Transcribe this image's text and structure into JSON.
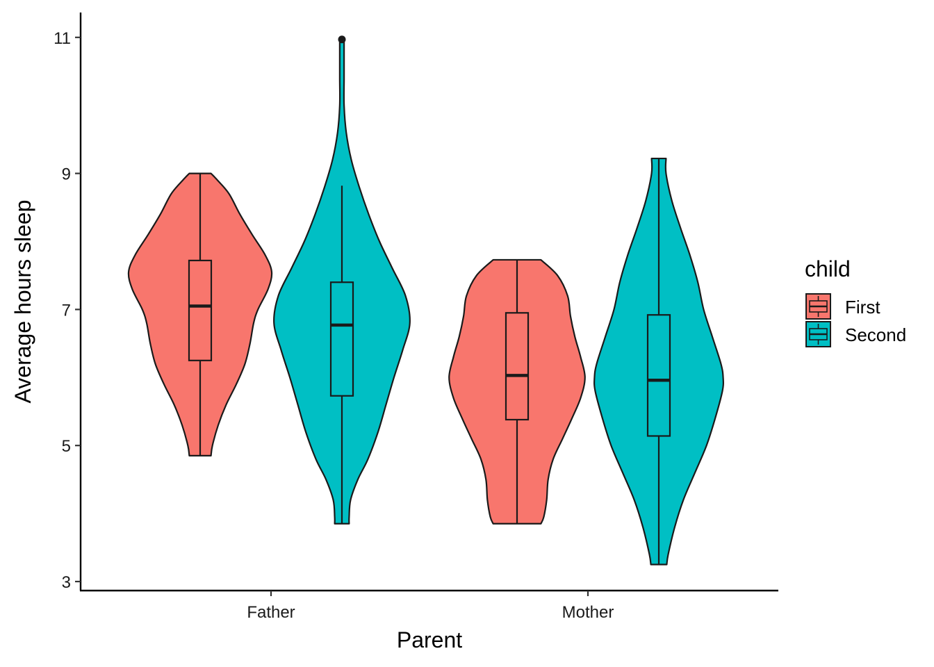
{
  "chart_data": {
    "type": "violin",
    "xlabel": "Parent",
    "ylabel": "Average hours sleep",
    "categories": [
      "Father",
      "Mother"
    ],
    "ylim": [
      2.9,
      11.4
    ],
    "yticks": [
      3,
      5,
      7,
      9,
      11
    ],
    "grid": false,
    "legend": {
      "title": "child",
      "placement": "right",
      "entries": [
        "First",
        "Second"
      ]
    },
    "colors": {
      "First": "#F8766D",
      "Second": "#00BFC4",
      "outline": "#1a1a1a"
    },
    "series": [
      {
        "name": "First",
        "groups": [
          {
            "category": "Father",
            "box": {
              "min": 4.85,
              "q1": 6.25,
              "median": 7.05,
              "q3": 7.72,
              "max": 9.0
            },
            "outliers": [],
            "density": [
              [
                4.85,
                0.15
              ],
              [
                5.0,
                0.17
              ],
              [
                5.3,
                0.25
              ],
              [
                5.6,
                0.36
              ],
              [
                5.9,
                0.5
              ],
              [
                6.2,
                0.62
              ],
              [
                6.5,
                0.69
              ],
              [
                6.8,
                0.74
              ],
              [
                7.0,
                0.8
              ],
              [
                7.3,
                0.94
              ],
              [
                7.55,
                0.99
              ],
              [
                7.8,
                0.9
              ],
              [
                8.1,
                0.72
              ],
              [
                8.4,
                0.55
              ],
              [
                8.7,
                0.4
              ],
              [
                8.9,
                0.24
              ],
              [
                9.0,
                0.15
              ]
            ]
          },
          {
            "category": "Mother",
            "box": {
              "min": 3.85,
              "q1": 5.38,
              "median": 6.03,
              "q3": 6.95,
              "max": 7.73
            },
            "outliers": [],
            "density": [
              [
                3.85,
                0.33
              ],
              [
                3.95,
                0.37
              ],
              [
                4.2,
                0.41
              ],
              [
                4.5,
                0.43
              ],
              [
                4.8,
                0.5
              ],
              [
                5.1,
                0.63
              ],
              [
                5.4,
                0.76
              ],
              [
                5.7,
                0.88
              ],
              [
                6.0,
                0.94
              ],
              [
                6.3,
                0.88
              ],
              [
                6.6,
                0.8
              ],
              [
                6.9,
                0.74
              ],
              [
                7.2,
                0.7
              ],
              [
                7.5,
                0.56
              ],
              [
                7.73,
                0.33
              ]
            ]
          }
        ]
      },
      {
        "name": "Second",
        "groups": [
          {
            "category": "Father",
            "box": {
              "min": 3.85,
              "q1": 5.73,
              "median": 6.77,
              "q3": 7.4,
              "max": 8.82
            },
            "outliers": [
              10.97
            ],
            "density": [
              [
                3.85,
                0.1
              ],
              [
                3.95,
                0.1
              ],
              [
                4.2,
                0.12
              ],
              [
                4.5,
                0.22
              ],
              [
                4.8,
                0.36
              ],
              [
                5.2,
                0.5
              ],
              [
                5.6,
                0.61
              ],
              [
                6.0,
                0.72
              ],
              [
                6.4,
                0.84
              ],
              [
                6.8,
                0.94
              ],
              [
                7.2,
                0.88
              ],
              [
                7.6,
                0.7
              ],
              [
                8.0,
                0.52
              ],
              [
                8.4,
                0.37
              ],
              [
                8.8,
                0.24
              ],
              [
                9.2,
                0.13
              ],
              [
                9.6,
                0.06
              ],
              [
                10.0,
                0.03
              ],
              [
                10.4,
                0.03
              ],
              [
                10.8,
                0.03
              ],
              [
                10.95,
                0.03
              ]
            ]
          },
          {
            "category": "Mother",
            "box": {
              "min": 3.25,
              "q1": 5.14,
              "median": 5.96,
              "q3": 6.92,
              "max": 9.22
            },
            "outliers": [],
            "density": [
              [
                3.25,
                0.11
              ],
              [
                3.4,
                0.13
              ],
              [
                3.8,
                0.22
              ],
              [
                4.2,
                0.34
              ],
              [
                4.6,
                0.5
              ],
              [
                5.0,
                0.66
              ],
              [
                5.4,
                0.78
              ],
              [
                5.8,
                0.88
              ],
              [
                6.0,
                0.89
              ],
              [
                6.2,
                0.86
              ],
              [
                6.6,
                0.74
              ],
              [
                7.0,
                0.62
              ],
              [
                7.4,
                0.54
              ],
              [
                7.8,
                0.43
              ],
              [
                8.2,
                0.3
              ],
              [
                8.6,
                0.18
              ],
              [
                9.0,
                0.1
              ],
              [
                9.22,
                0.1
              ]
            ]
          }
        ]
      }
    ]
  }
}
